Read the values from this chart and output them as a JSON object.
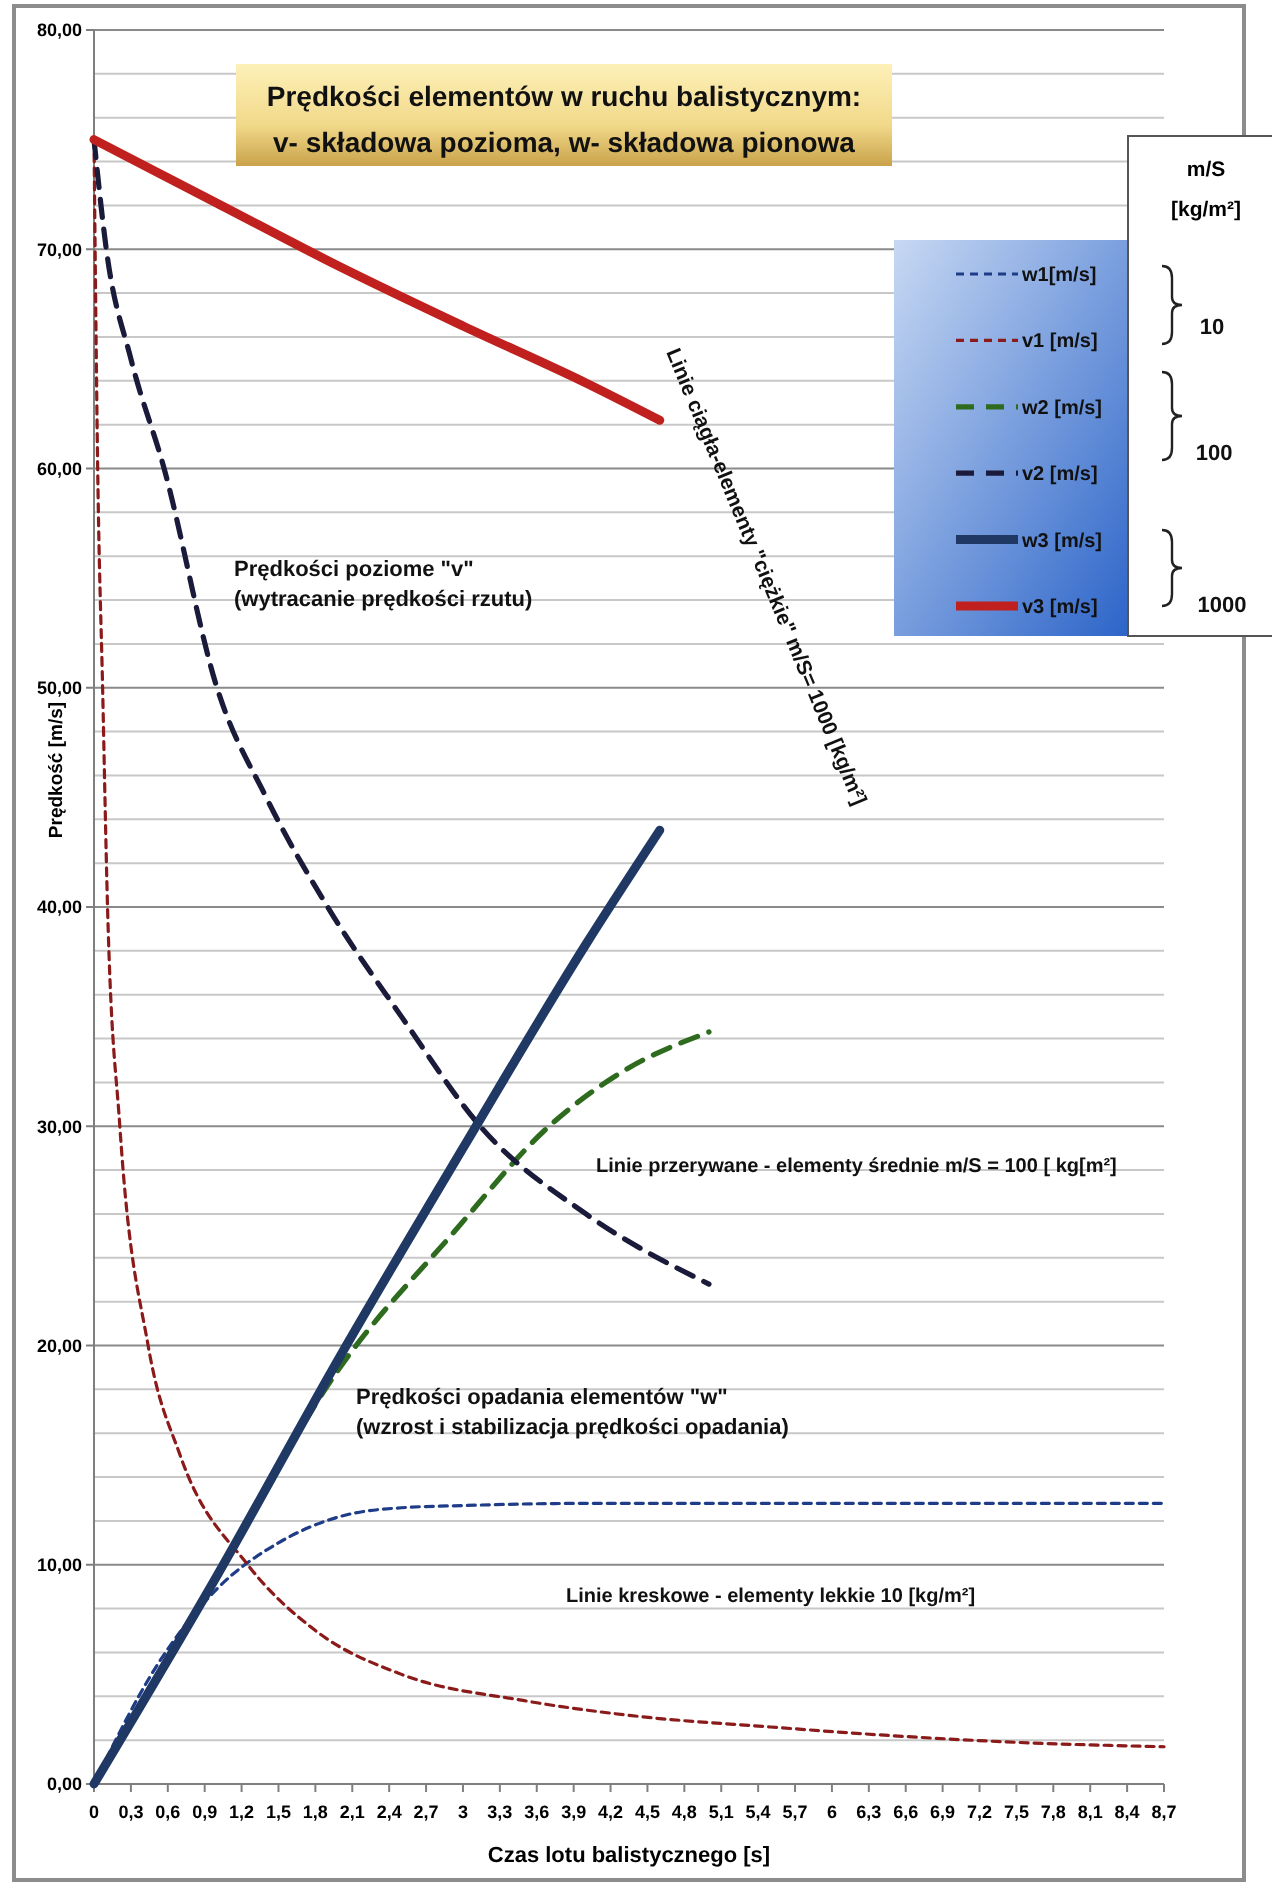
{
  "chart_data": {
    "type": "line",
    "title": "Prędkości elementów w ruchu balistycznym:\nv- składowa pozioma, w- składowa pionowa",
    "xlabel": "Czas lotu balistycznego [s]",
    "ylabel": "Prędkość [m/s]",
    "legend": "right",
    "legend_title": "m/S\n[kg/m²]",
    "grid": "y",
    "xlim": [
      0,
      8.7
    ],
    "ylim": [
      0,
      80
    ],
    "xticks": [
      0,
      {
        "value": 0.3,
        "label": "0,3"
      },
      {
        "value": 0.6,
        "label": "0,6"
      },
      {
        "value": 0.9,
        "label": "0,9"
      },
      {
        "value": 1.2,
        "label": "1,2"
      },
      {
        "value": 1.5,
        "label": "1,5"
      },
      {
        "value": 1.8,
        "label": "1,8"
      },
      {
        "value": 2.1,
        "label": "2,1"
      },
      {
        "value": 2.4,
        "label": "2,4"
      },
      {
        "value": 2.7,
        "label": "2,7"
      },
      3,
      {
        "value": 3.3,
        "label": "3,3"
      },
      {
        "value": 3.6,
        "label": "3,6"
      },
      {
        "value": 3.9,
        "label": "3,9"
      },
      {
        "value": 4.2,
        "label": "4,2"
      },
      {
        "value": 4.5,
        "label": "4,5"
      },
      {
        "value": 4.8,
        "label": "4,8"
      },
      {
        "value": 5.1,
        "label": "5,1"
      },
      {
        "value": 5.4,
        "label": "5,4"
      },
      {
        "value": 5.7,
        "label": "5,7"
      },
      6,
      {
        "value": 6.3,
        "label": "6,3"
      },
      {
        "value": 6.6,
        "label": "6,6"
      },
      {
        "value": 6.9,
        "label": "6,9"
      },
      {
        "value": 7.2,
        "label": "7,2"
      },
      {
        "value": 7.5,
        "label": "7,5"
      },
      {
        "value": 7.8,
        "label": "7,8"
      },
      {
        "value": 8.1,
        "label": "8,1"
      },
      {
        "value": 8.4,
        "label": "8,4"
      },
      {
        "value": 8.7,
        "label": "8,7"
      }
    ],
    "yticks": [
      {
        "value": 0,
        "label": "0,00"
      },
      {
        "value": 2,
        "label": null
      },
      {
        "value": 4,
        "label": null
      },
      {
        "value": 6,
        "label": null
      },
      {
        "value": 8,
        "label": null
      },
      {
        "value": 10,
        "label": "10,00"
      },
      {
        "value": 12,
        "label": null
      },
      {
        "value": 14,
        "label": null
      },
      {
        "value": 16,
        "label": null
      },
      {
        "value": 18,
        "label": null
      },
      {
        "value": 20,
        "label": "20,00"
      },
      {
        "value": 22,
        "label": null
      },
      {
        "value": 24,
        "label": null
      },
      {
        "value": 26,
        "label": null
      },
      {
        "value": 28,
        "label": null
      },
      {
        "value": 30,
        "label": "30,00"
      },
      {
        "value": 32,
        "label": null
      },
      {
        "value": 34,
        "label": null
      },
      {
        "value": 36,
        "label": null
      },
      {
        "value": 38,
        "label": null
      },
      {
        "value": 40,
        "label": "40,00"
      },
      {
        "value": 42,
        "label": null
      },
      {
        "value": 44,
        "label": null
      },
      {
        "value": 46,
        "label": null
      },
      {
        "value": 48,
        "label": null
      },
      {
        "value": 50,
        "label": "50,00"
      },
      {
        "value": 52,
        "label": null
      },
      {
        "value": 54,
        "label": null
      },
      {
        "value": 56,
        "label": null
      },
      {
        "value": 58,
        "label": null
      },
      {
        "value": 60,
        "label": "60,00"
      },
      {
        "value": 62,
        "label": null
      },
      {
        "value": 64,
        "label": null
      },
      {
        "value": 66,
        "label": null
      },
      {
        "value": 68,
        "label": null
      },
      {
        "value": 70,
        "label": "70,00"
      },
      {
        "value": 72,
        "label": null
      },
      {
        "value": 74,
        "label": null
      },
      {
        "value": 76,
        "label": null
      },
      {
        "value": 78,
        "label": null
      },
      {
        "value": 80,
        "label": "80,00"
      }
    ],
    "series": [
      {
        "name": "w1[m/s]",
        "color": "#1f3c88",
        "line_style": "dotted",
        "x": [
          0,
          0.5,
          1,
          1.5,
          2,
          2.5,
          3,
          4,
          5,
          6,
          7,
          8,
          8.7
        ],
        "values": [
          0,
          5.3,
          8.9,
          11.0,
          12.2,
          12.6,
          12.7,
          12.8,
          12.8,
          12.8,
          12.8,
          12.8,
          12.8
        ]
      },
      {
        "name": "v1 [m/s]",
        "color": "#8b1a1a",
        "line_style": "dotted",
        "x": [
          0,
          0.03,
          0.07,
          0.11,
          0.21,
          0.44,
          0.7,
          1.25,
          1.8,
          2.5,
          3.5,
          4.4,
          5.5,
          6.5,
          7.5,
          8.7
        ],
        "values": [
          75,
          60,
          50,
          40,
          30,
          20,
          15,
          10,
          7,
          5,
          3.8,
          3.1,
          2.6,
          2.2,
          1.9,
          1.7
        ]
      },
      {
        "name": "w2 [m/s]",
        "color": "#2e6b1e",
        "line_style": "dashed",
        "x": [
          0,
          1,
          2,
          2.9,
          3.7,
          4.3,
          5
        ],
        "values": [
          0,
          9.6,
          19,
          25,
          30,
          32.5,
          34.3
        ]
      },
      {
        "name": "v2 [m/s]",
        "color": "#1a1a3a",
        "line_style": "dashed",
        "x": [
          0,
          0.1,
          0.3,
          0.57,
          1,
          1.4,
          1.9,
          2.5,
          3.14,
          4,
          5
        ],
        "values": [
          75,
          70,
          65,
          60,
          50,
          45,
          40,
          35,
          30,
          26,
          22.8
        ]
      },
      {
        "name": "w3 [m/s]",
        "color": "#1f3864",
        "line_style": "solid",
        "x": [
          0,
          1,
          2,
          3,
          4,
          4.6
        ],
        "values": [
          0,
          9.5,
          19.5,
          29,
          38.3,
          43.5
        ]
      },
      {
        "name": "v3 [m/s]",
        "color": "#c0211e",
        "line_style": "solid",
        "x": [
          0,
          1,
          2,
          3,
          4,
          4.6
        ],
        "values": [
          75,
          72.1,
          69.2,
          66.5,
          63.9,
          62.2
        ]
      }
    ],
    "annotations": [
      "Prędkości  poziome   \"v\"\n(wytracanie prędkości  rzutu)",
      "Linie ciągła-elementy \"ciężkie\" m/S= 1000 [kg/m²]",
      "Linie przerywane - elementy średnie  m/S = 100 [ kg[m²]",
      "Prędkości opadania  elementów  \"w\"\n(wzrost i stabilizacja prędkości  opadania)",
      "Linie kreskowe - elementy lekkie 10 [kg/m²]",
      "10",
      "100",
      "1000"
    ]
  }
}
